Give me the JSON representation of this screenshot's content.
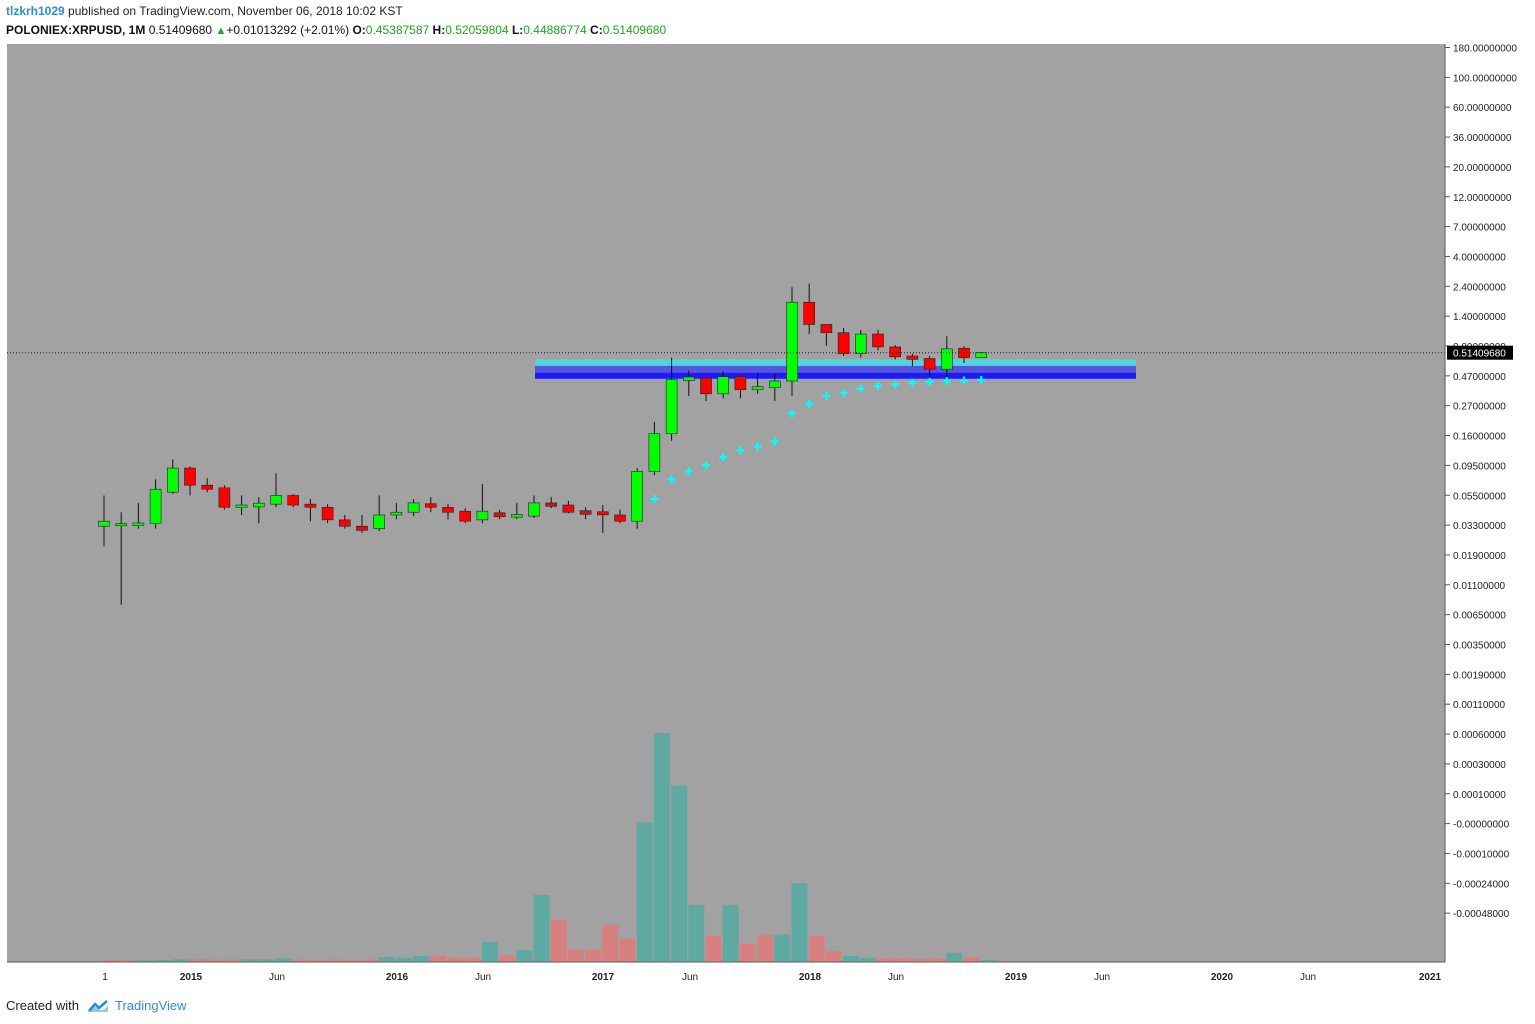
{
  "header": {
    "author": "tlzkrh1029",
    "published_text": "published on TradingView.com, November 06, 2018 10:02 KST"
  },
  "info": {
    "symbol": "POLONIEX:XRPUSD, 1M",
    "last": "0.51409680",
    "change": "+0.01013292 (+2.01%)",
    "o_label": "O:",
    "o_value": "0.45387587",
    "h_label": "H:",
    "h_value": "0.52059804",
    "l_label": "L:",
    "l_value": "0.44886774",
    "c_label": "C:",
    "c_value": "0.51409680"
  },
  "footer": {
    "created_with": "Created with",
    "brand": "TradingView"
  },
  "colors": {
    "panel_bg": "#a2a2a2",
    "up": "#00ff00",
    "down": "#ff0000",
    "vol_up": "#5fa9a3",
    "vol_down": "#d88080",
    "cross": "#00ffff",
    "zone_cyan": "#4fd5dc",
    "zone_mid": "#5555dd",
    "zone_blue": "#1a1aff"
  },
  "chart_data": {
    "type": "candlestick",
    "y_scale": "log",
    "last_price_label": "0.51409680",
    "y_tick_labels": [
      "180.00000000",
      "100.00000000",
      "60.00000000",
      "36.00000000",
      "20.00000000",
      "12.00000000",
      "7.00000000",
      "4.00000000",
      "2.40000000",
      "1.40000000",
      "0.80000000",
      "0.47000000",
      "0.27000000",
      "0.16000000",
      "0.09500000",
      "0.05500000",
      "0.03300000",
      "0.01900000",
      "0.01100000",
      "0.00650000",
      "0.00350000",
      "0.00190000",
      "0.00110000",
      "0.00060000",
      "0.00030000",
      "0.00010000",
      "-0.00000000",
      "-0.00010000",
      "-0.00024000",
      "-0.00048000"
    ],
    "x_tick_labels": [
      "1",
      "2015",
      "Jun",
      "2016",
      "Jun",
      "2017",
      "Jun",
      "2018",
      "Jun",
      "2019",
      "Jun",
      "2020",
      "Jun",
      "2021"
    ],
    "candles": [
      {
        "o": 0.0048,
        "h": 0.011,
        "l": 0.0028,
        "c": 0.0055
      },
      {
        "o": 0.005,
        "h": 0.007,
        "l": 0.00058,
        "c": 0.005
      },
      {
        "o": 0.005,
        "h": 0.009,
        "l": 0.0045,
        "c": 0.0051
      },
      {
        "o": 0.0052,
        "h": 0.017,
        "l": 0.0045,
        "c": 0.013
      },
      {
        "o": 0.012,
        "h": 0.029,
        "l": 0.0115,
        "c": 0.023
      },
      {
        "o": 0.023,
        "h": 0.024,
        "l": 0.011,
        "c": 0.0145
      },
      {
        "o": 0.0145,
        "h": 0.0175,
        "l": 0.012,
        "c": 0.013
      },
      {
        "o": 0.0135,
        "h": 0.0145,
        "l": 0.0075,
        "c": 0.008
      },
      {
        "o": 0.008,
        "h": 0.011,
        "l": 0.0065,
        "c": 0.0085
      },
      {
        "o": 0.0083,
        "h": 0.0105,
        "l": 0.0052,
        "c": 0.0087
      },
      {
        "o": 0.0087,
        "h": 0.02,
        "l": 0.008,
        "c": 0.011
      },
      {
        "o": 0.011,
        "h": 0.0115,
        "l": 0.008,
        "c": 0.0085
      },
      {
        "o": 0.0087,
        "h": 0.01,
        "l": 0.0055,
        "c": 0.008
      },
      {
        "o": 0.008,
        "h": 0.0087,
        "l": 0.0052,
        "c": 0.0057
      },
      {
        "o": 0.0057,
        "h": 0.0065,
        "l": 0.0045,
        "c": 0.0048
      },
      {
        "o": 0.0048,
        "h": 0.0065,
        "l": 0.004,
        "c": 0.0043
      },
      {
        "o": 0.0045,
        "h": 0.011,
        "l": 0.0042,
        "c": 0.0065
      },
      {
        "o": 0.0065,
        "h": 0.009,
        "l": 0.0058,
        "c": 0.007
      },
      {
        "o": 0.007,
        "h": 0.01,
        "l": 0.0063,
        "c": 0.009
      },
      {
        "o": 0.0088,
        "h": 0.0105,
        "l": 0.007,
        "c": 0.008
      },
      {
        "o": 0.008,
        "h": 0.0088,
        "l": 0.0058,
        "c": 0.007
      },
      {
        "o": 0.0072,
        "h": 0.0078,
        "l": 0.0052,
        "c": 0.0055
      },
      {
        "o": 0.0057,
        "h": 0.015,
        "l": 0.0052,
        "c": 0.0072
      },
      {
        "o": 0.0069,
        "h": 0.0075,
        "l": 0.0058,
        "c": 0.0062
      },
      {
        "o": 0.0063,
        "h": 0.009,
        "l": 0.0058,
        "c": 0.0064
      },
      {
        "o": 0.0063,
        "h": 0.011,
        "l": 0.006,
        "c": 0.009
      },
      {
        "o": 0.009,
        "h": 0.0105,
        "l": 0.0078,
        "c": 0.0082
      },
      {
        "o": 0.0085,
        "h": 0.0095,
        "l": 0.0068,
        "c": 0.007
      },
      {
        "o": 0.0071,
        "h": 0.008,
        "l": 0.0058,
        "c": 0.0068
      },
      {
        "o": 0.0069,
        "h": 0.0085,
        "l": 0.004,
        "c": 0.0067
      },
      {
        "o": 0.0065,
        "h": 0.0075,
        "l": 0.0052,
        "c": 0.0055
      },
      {
        "o": 0.0055,
        "h": 0.023,
        "l": 0.0045,
        "c": 0.021
      },
      {
        "o": 0.021,
        "h": 0.08,
        "l": 0.019,
        "c": 0.058
      },
      {
        "o": 0.058,
        "h": 0.45,
        "l": 0.048,
        "c": 0.25
      },
      {
        "o": 0.25,
        "h": 0.32,
        "l": 0.16,
        "c": 0.26
      },
      {
        "o": 0.26,
        "h": 0.26,
        "l": 0.14,
        "c": 0.17
      },
      {
        "o": 0.17,
        "h": 0.31,
        "l": 0.15,
        "c": 0.27
      },
      {
        "o": 0.27,
        "h": 0.28,
        "l": 0.15,
        "c": 0.19
      },
      {
        "o": 0.195,
        "h": 0.3,
        "l": 0.17,
        "c": 0.2
      },
      {
        "o": 0.2,
        "h": 0.29,
        "l": 0.14,
        "c": 0.24
      },
      {
        "o": 0.24,
        "h": 3.0,
        "l": 0.16,
        "c": 2.0
      },
      {
        "o": 2.0,
        "h": 3.3,
        "l": 0.85,
        "c": 1.1
      },
      {
        "o": 1.1,
        "h": 1.1,
        "l": 0.62,
        "c": 0.88
      },
      {
        "o": 0.88,
        "h": 1.0,
        "l": 0.47,
        "c": 0.5
      },
      {
        "o": 0.5,
        "h": 0.95,
        "l": 0.45,
        "c": 0.85
      },
      {
        "o": 0.85,
        "h": 0.95,
        "l": 0.55,
        "c": 0.6
      },
      {
        "o": 0.6,
        "h": 0.63,
        "l": 0.43,
        "c": 0.46
      },
      {
        "o": 0.47,
        "h": 0.5,
        "l": 0.36,
        "c": 0.43
      },
      {
        "o": 0.44,
        "h": 0.47,
        "l": 0.26,
        "c": 0.33
      },
      {
        "o": 0.33,
        "h": 0.8,
        "l": 0.26,
        "c": 0.57
      },
      {
        "o": 0.58,
        "h": 0.61,
        "l": 0.39,
        "c": 0.45
      },
      {
        "o": 0.454,
        "h": 0.5206,
        "l": 0.4489,
        "c": 0.5141
      }
    ],
    "parabolic_sar": [
      [
        32,
        0.01
      ],
      [
        33,
        0.017
      ],
      [
        34,
        0.021
      ],
      [
        35,
        0.025
      ],
      [
        36,
        0.031
      ],
      [
        37,
        0.037
      ],
      [
        38,
        0.041
      ],
      [
        39,
        0.047
      ],
      [
        40,
        0.1
      ],
      [
        41,
        0.13
      ],
      [
        42,
        0.16
      ],
      [
        43,
        0.175
      ],
      [
        44,
        0.195
      ],
      [
        45,
        0.21
      ],
      [
        46,
        0.22
      ],
      [
        47,
        0.228
      ],
      [
        48,
        0.234
      ],
      [
        49,
        0.239
      ],
      [
        50,
        0.243
      ],
      [
        51,
        0.247
      ]
    ],
    "zones": [
      {
        "name": "cyan",
        "top": 0.43,
        "bottom": 0.36
      },
      {
        "name": "mid",
        "top": 0.36,
        "bottom": 0.3
      },
      {
        "name": "blue",
        "top": 0.3,
        "bottom": 0.255
      }
    ],
    "volume": [
      {
        "v": 0.3,
        "up": false
      },
      {
        "v": 0.2,
        "up": false
      },
      {
        "v": 0.2,
        "up": true
      },
      {
        "v": 0.3,
        "up": true
      },
      {
        "v": 0.5,
        "up": true
      },
      {
        "v": 0.6,
        "up": false
      },
      {
        "v": 0.5,
        "up": false
      },
      {
        "v": 0.5,
        "up": false
      },
      {
        "v": 0.5,
        "up": true
      },
      {
        "v": 0.5,
        "up": true
      },
      {
        "v": 0.8,
        "up": true
      },
      {
        "v": 0.5,
        "up": false
      },
      {
        "v": 0.4,
        "up": false
      },
      {
        "v": 0.5,
        "up": false
      },
      {
        "v": 0.4,
        "up": false
      },
      {
        "v": 0.5,
        "up": false
      },
      {
        "v": 1.2,
        "up": true
      },
      {
        "v": 1.0,
        "up": true
      },
      {
        "v": 1.5,
        "up": true
      },
      {
        "v": 1.5,
        "up": false
      },
      {
        "v": 1.0,
        "up": false
      },
      {
        "v": 1.0,
        "up": false
      },
      {
        "v": 5.8,
        "up": true
      },
      {
        "v": 1.8,
        "up": false
      },
      {
        "v": 3.3,
        "up": true
      },
      {
        "v": 20.0,
        "up": true
      },
      {
        "v": 12.5,
        "up": false
      },
      {
        "v": 3.5,
        "up": false
      },
      {
        "v": 3.5,
        "up": false
      },
      {
        "v": 11.0,
        "up": false
      },
      {
        "v": 6.8,
        "up": false
      },
      {
        "v": 42.0,
        "up": true
      },
      {
        "v": 69.0,
        "up": true
      },
      {
        "v": 53.0,
        "up": true
      },
      {
        "v": 17.0,
        "up": true
      },
      {
        "v": 7.5,
        "up": false
      },
      {
        "v": 17.0,
        "up": true
      },
      {
        "v": 5.2,
        "up": false
      },
      {
        "v": 7.8,
        "up": false
      },
      {
        "v": 8.0,
        "up": true
      },
      {
        "v": 23.5,
        "up": true
      },
      {
        "v": 7.5,
        "up": false
      },
      {
        "v": 3.0,
        "up": false
      },
      {
        "v": 1.5,
        "up": true
      },
      {
        "v": 1.0,
        "up": true
      },
      {
        "v": 0.8,
        "up": false
      },
      {
        "v": 0.8,
        "up": false
      },
      {
        "v": 0.7,
        "up": false
      },
      {
        "v": 0.8,
        "up": false
      },
      {
        "v": 2.5,
        "up": true
      },
      {
        "v": 1.0,
        "up": false
      },
      {
        "v": 0.3,
        "up": true
      }
    ]
  }
}
